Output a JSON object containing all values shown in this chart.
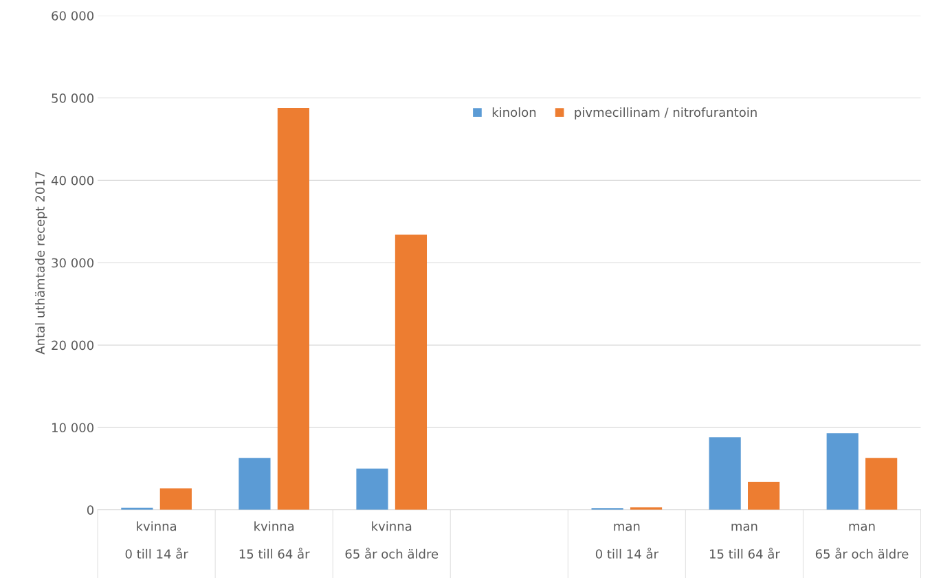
{
  "chart_data": {
    "type": "bar",
    "ylabel": "Antal uthämtade recept 2017",
    "categories": [
      "kvinna\n\n0 till 14 år",
      "kvinna\n\n15 till 64 år",
      "kvinna\n\n65 år och äldre",
      null,
      "man\n\n0 till 14 år",
      "man\n\n15 till 64 år",
      "man\n\n65 år och äldre"
    ],
    "series": [
      {
        "name": "kinolon",
        "color": "#5b9bd5",
        "values": [
          250,
          6300,
          5000,
          null,
          200,
          8800,
          9300
        ]
      },
      {
        "name": "pivmecillinam / nitrofurantoin",
        "color": "#ed7d31",
        "values": [
          2600,
          48800,
          33400,
          null,
          300,
          3400,
          6300
        ]
      }
    ],
    "ylim": [
      0,
      60000
    ],
    "yticks": [
      {
        "value": 0,
        "label": "0"
      },
      {
        "value": 10000,
        "label": "10 000"
      },
      {
        "value": 20000,
        "label": "20 000"
      },
      {
        "value": 30000,
        "label": "30 000"
      },
      {
        "value": 40000,
        "label": "40 000"
      },
      {
        "value": 50000,
        "label": "50 000"
      },
      {
        "value": 60000,
        "label": "60 000"
      }
    ],
    "grid": "y",
    "legend": "top right"
  }
}
